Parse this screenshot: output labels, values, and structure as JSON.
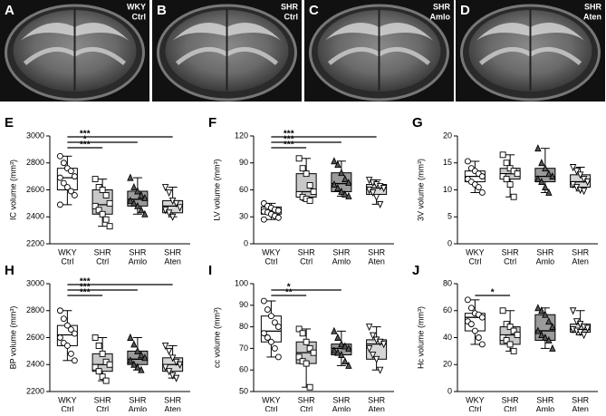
{
  "images": [
    {
      "letter": "A",
      "label": [
        "WKY",
        "Ctrl"
      ]
    },
    {
      "letter": "B",
      "label": [
        "SHR",
        "Ctrl"
      ]
    },
    {
      "letter": "C",
      "label": [
        "SHR",
        "Amlo"
      ]
    },
    {
      "letter": "D",
      "label": [
        "SHR",
        "Aten"
      ]
    }
  ],
  "chart_data": [
    {
      "type": "box",
      "title": "E",
      "y_label": "IC volume (mm³)",
      "categories": [
        [
          "WKY",
          "Ctrl"
        ],
        [
          "SHR",
          "Ctrl"
        ],
        [
          "SHR",
          "Amlo"
        ],
        [
          "SHR",
          "Aten"
        ]
      ],
      "ylim": [
        2200,
        3000
      ],
      "yticks": [
        2200,
        2400,
        2600,
        2800,
        3000
      ],
      "groups": [
        {
          "box_color": "#ffffff",
          "marker": "circle",
          "marker_color": "#ffffff",
          "min": 2490,
          "q1": 2600,
          "median": 2690,
          "q3": 2760,
          "max": 2850,
          "points": [
            2850,
            2800,
            2760,
            2740,
            2700,
            2690,
            2650,
            2620,
            2590,
            2560,
            2490
          ]
        },
        {
          "box_color": "#c8c8c8",
          "marker": "square",
          "marker_color": "#ffffff",
          "min": 2330,
          "q1": 2420,
          "median": 2490,
          "q3": 2600,
          "max": 2680,
          "points": [
            2680,
            2620,
            2600,
            2560,
            2500,
            2480,
            2450,
            2420,
            2380,
            2330
          ]
        },
        {
          "box_color": "#9a9a9a",
          "marker": "triangle",
          "marker_color": "#555555",
          "min": 2420,
          "q1": 2480,
          "median": 2530,
          "q3": 2590,
          "max": 2690,
          "points": [
            2690,
            2620,
            2590,
            2560,
            2540,
            2520,
            2500,
            2480,
            2450,
            2420
          ]
        },
        {
          "box_color": "#d6d6d6",
          "marker": "triangle-down",
          "marker_color": "#ffffff",
          "min": 2400,
          "q1": 2430,
          "median": 2480,
          "q3": 2520,
          "max": 2620,
          "points": [
            2620,
            2580,
            2520,
            2500,
            2470,
            2450,
            2430,
            2400
          ]
        }
      ],
      "significance": [
        {
          "pair": [
            0,
            1
          ],
          "label": "***"
        },
        {
          "pair": [
            0,
            2
          ],
          "label": "*"
        },
        {
          "pair": [
            0,
            3
          ],
          "label": "***"
        }
      ]
    },
    {
      "type": "box",
      "title": "F",
      "y_label": "LV volume (mm³)",
      "categories": [
        [
          "WKY",
          "Ctrl"
        ],
        [
          "SHR",
          "Ctrl"
        ],
        [
          "SHR",
          "Amlo"
        ],
        [
          "SHR",
          "Aten"
        ]
      ],
      "ylim": [
        0,
        120
      ],
      "yticks": [
        0,
        30,
        60,
        90,
        120
      ],
      "groups": [
        {
          "box_color": "#ffffff",
          "marker": "circle",
          "marker_color": "#ffffff",
          "min": 27,
          "q1": 33,
          "median": 37,
          "q3": 41,
          "max": 45,
          "points": [
            45,
            42,
            40,
            38,
            37,
            36,
            35,
            33,
            31,
            29,
            27
          ]
        },
        {
          "box_color": "#c8c8c8",
          "marker": "square",
          "marker_color": "#ffffff",
          "min": 48,
          "q1": 52,
          "median": 58,
          "q3": 78,
          "max": 95,
          "points": [
            95,
            84,
            78,
            65,
            58,
            55,
            52,
            50,
            48
          ]
        },
        {
          "box_color": "#9a9a9a",
          "marker": "triangle",
          "marker_color": "#555555",
          "min": 53,
          "q1": 58,
          "median": 67,
          "q3": 79,
          "max": 92,
          "points": [
            92,
            88,
            79,
            72,
            68,
            66,
            62,
            58,
            55,
            53
          ]
        },
        {
          "box_color": "#d6d6d6",
          "marker": "triangle-down",
          "marker_color": "#ffffff",
          "min": 44,
          "q1": 55,
          "median": 62,
          "q3": 66,
          "max": 71,
          "points": [
            71,
            68,
            66,
            64,
            62,
            60,
            57,
            52,
            44
          ]
        }
      ],
      "significance": [
        {
          "pair": [
            0,
            1
          ],
          "label": "***"
        },
        {
          "pair": [
            0,
            2
          ],
          "label": "***"
        },
        {
          "pair": [
            0,
            3
          ],
          "label": "***"
        }
      ]
    },
    {
      "type": "box",
      "title": "G",
      "y_label": "3V volume (mm³)",
      "categories": [
        [
          "WKY",
          "Ctrl"
        ],
        [
          "SHR",
          "Ctrl"
        ],
        [
          "SHR",
          "Amlo"
        ],
        [
          "SHR",
          "Aten"
        ]
      ],
      "ylim": [
        0,
        20
      ],
      "yticks": [
        0,
        5,
        10,
        15,
        20
      ],
      "groups": [
        {
          "box_color": "#ffffff",
          "marker": "circle",
          "marker_color": "#ffffff",
          "min": 9.5,
          "q1": 11.5,
          "median": 12.5,
          "q3": 13.5,
          "max": 15.3,
          "points": [
            15.3,
            14,
            13.5,
            13,
            12.5,
            12,
            11.5,
            11,
            10.5,
            9.5
          ]
        },
        {
          "box_color": "#c8c8c8",
          "marker": "square",
          "marker_color": "#ffffff",
          "min": 8.7,
          "q1": 12,
          "median": 13,
          "q3": 14,
          "max": 16.5,
          "points": [
            16.5,
            15,
            14,
            13.5,
            13,
            12.5,
            12,
            11,
            8.7
          ]
        },
        {
          "box_color": "#9a9a9a",
          "marker": "triangle",
          "marker_color": "#555555",
          "min": 9.5,
          "q1": 11.5,
          "median": 12.5,
          "q3": 14,
          "max": 17.7,
          "points": [
            17.7,
            15,
            14,
            13,
            12.5,
            12,
            11.5,
            10.5,
            9.5
          ]
        },
        {
          "box_color": "#d6d6d6",
          "marker": "triangle-down",
          "marker_color": "#ffffff",
          "min": 9.8,
          "q1": 10.5,
          "median": 11.5,
          "q3": 12.8,
          "max": 14.2,
          "points": [
            14.2,
            13.5,
            12.8,
            12,
            11.5,
            11,
            10.5,
            10,
            9.8
          ]
        }
      ],
      "significance": []
    },
    {
      "type": "box",
      "title": "H",
      "y_label": "BP volume (mm³)",
      "categories": [
        [
          "WKY",
          "Ctrl"
        ],
        [
          "SHR",
          "Ctrl"
        ],
        [
          "SHR",
          "Amlo"
        ],
        [
          "SHR",
          "Aten"
        ]
      ],
      "ylim": [
        2200,
        3000
      ],
      "yticks": [
        2200,
        2400,
        2600,
        2800,
        3000
      ],
      "groups": [
        {
          "box_color": "#ffffff",
          "marker": "circle",
          "marker_color": "#ffffff",
          "min": 2430,
          "q1": 2540,
          "median": 2620,
          "q3": 2690,
          "max": 2800,
          "points": [
            2800,
            2740,
            2690,
            2660,
            2630,
            2600,
            2560,
            2540,
            2480,
            2430
          ]
        },
        {
          "box_color": "#c8c8c8",
          "marker": "square",
          "marker_color": "#ffffff",
          "min": 2280,
          "q1": 2350,
          "median": 2400,
          "q3": 2480,
          "max": 2600,
          "points": [
            2600,
            2540,
            2480,
            2420,
            2400,
            2380,
            2350,
            2310,
            2280
          ]
        },
        {
          "box_color": "#9a9a9a",
          "marker": "triangle",
          "marker_color": "#555555",
          "min": 2360,
          "q1": 2400,
          "median": 2440,
          "q3": 2500,
          "max": 2600,
          "points": [
            2600,
            2550,
            2500,
            2470,
            2450,
            2430,
            2400,
            2380,
            2360
          ]
        },
        {
          "box_color": "#d6d6d6",
          "marker": "triangle-down",
          "marker_color": "#ffffff",
          "min": 2300,
          "q1": 2350,
          "median": 2400,
          "q3": 2450,
          "max": 2540,
          "points": [
            2540,
            2500,
            2450,
            2420,
            2400,
            2380,
            2350,
            2320,
            2300
          ]
        }
      ],
      "significance": [
        {
          "pair": [
            0,
            1
          ],
          "label": "***"
        },
        {
          "pair": [
            0,
            2
          ],
          "label": "***"
        },
        {
          "pair": [
            0,
            3
          ],
          "label": "***"
        }
      ]
    },
    {
      "type": "box",
      "title": "I",
      "y_label": "cc volume (mm³)",
      "categories": [
        [
          "WKY",
          "Ctrl"
        ],
        [
          "SHR",
          "Ctrl"
        ],
        [
          "SHR",
          "Amlo"
        ],
        [
          "SHR",
          "Aten"
        ]
      ],
      "ylim": [
        50,
        100
      ],
      "yticks": [
        50,
        60,
        70,
        80,
        90,
        100
      ],
      "groups": [
        {
          "box_color": "#ffffff",
          "marker": "circle",
          "marker_color": "#ffffff",
          "min": 66,
          "q1": 73,
          "median": 78,
          "q3": 85,
          "max": 92,
          "points": [
            92,
            88,
            85,
            82,
            80,
            77,
            75,
            73,
            70,
            66
          ]
        },
        {
          "box_color": "#c8c8c8",
          "marker": "square",
          "marker_color": "#ffffff",
          "min": 52,
          "q1": 63,
          "median": 68,
          "q3": 73,
          "max": 79,
          "points": [
            79,
            77,
            73,
            70,
            68,
            66,
            64,
            63,
            52
          ]
        },
        {
          "box_color": "#9a9a9a",
          "marker": "triangle",
          "marker_color": "#555555",
          "min": 62,
          "q1": 67,
          "median": 70,
          "q3": 72,
          "max": 78,
          "points": [
            78,
            75,
            72,
            71,
            70,
            69,
            68,
            67,
            64,
            62
          ]
        },
        {
          "box_color": "#d6d6d6",
          "marker": "triangle-down",
          "marker_color": "#ffffff",
          "min": 60,
          "q1": 65,
          "median": 72,
          "q3": 74,
          "max": 80,
          "points": [
            80,
            76,
            74,
            73,
            72,
            70,
            67,
            65,
            60
          ]
        }
      ],
      "significance": [
        {
          "pair": [
            0,
            1
          ],
          "label": "**"
        },
        {
          "pair": [
            0,
            2
          ],
          "label": "*"
        }
      ]
    },
    {
      "type": "box",
      "title": "J",
      "y_label": "Hc volume (mm³)",
      "categories": [
        [
          "WKY",
          "Ctrl"
        ],
        [
          "SHR",
          "Ctrl"
        ],
        [
          "SHR",
          "Amlo"
        ],
        [
          "SHR",
          "Aten"
        ]
      ],
      "ylim": [
        0,
        80
      ],
      "yticks": [
        0,
        20,
        40,
        60,
        80
      ],
      "groups": [
        {
          "box_color": "#ffffff",
          "marker": "circle",
          "marker_color": "#ffffff",
          "min": 35,
          "q1": 45,
          "median": 55,
          "q3": 58,
          "max": 68,
          "points": [
            68,
            62,
            58,
            57,
            55,
            52,
            50,
            45,
            40,
            35
          ]
        },
        {
          "box_color": "#c8c8c8",
          "marker": "square",
          "marker_color": "#ffffff",
          "min": 30,
          "q1": 35,
          "median": 42,
          "q3": 48,
          "max": 60,
          "points": [
            60,
            50,
            48,
            45,
            42,
            40,
            38,
            35,
            30
          ]
        },
        {
          "box_color": "#9a9a9a",
          "marker": "triangle",
          "marker_color": "#555555",
          "min": 32,
          "q1": 38,
          "median": 45,
          "q3": 57,
          "max": 62,
          "points": [
            62,
            60,
            57,
            52,
            48,
            45,
            42,
            40,
            38,
            32
          ]
        },
        {
          "box_color": "#d6d6d6",
          "marker": "triangle-down",
          "marker_color": "#ffffff",
          "min": 42,
          "q1": 44,
          "median": 46,
          "q3": 50,
          "max": 60,
          "points": [
            60,
            52,
            50,
            48,
            47,
            46,
            45,
            44,
            42
          ]
        }
      ],
      "significance": [
        {
          "pair": [
            0,
            1
          ],
          "label": "*"
        }
      ]
    }
  ]
}
